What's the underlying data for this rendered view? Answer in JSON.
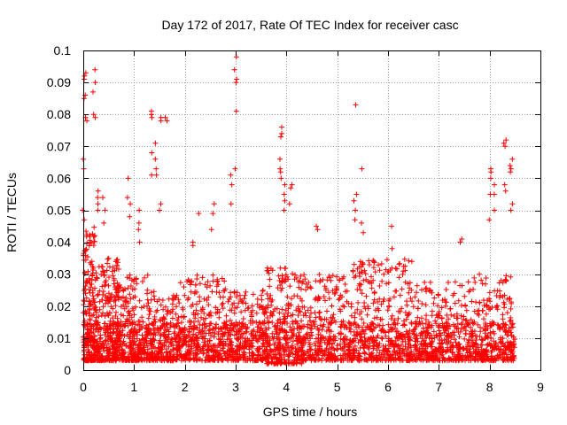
{
  "chart_data": {
    "type": "scatter",
    "title": "Day 172 of 2017, Rate Of TEC Index for receiver casc",
    "xlabel": "GPS time / hours",
    "ylabel": "ROTI / TECUs",
    "xlim": [
      0,
      9
    ],
    "ylim": [
      0,
      0.1
    ],
    "xticks": [
      0,
      1,
      2,
      3,
      4,
      5,
      6,
      7,
      8,
      9
    ],
    "xtick_labels": [
      "0",
      "1",
      "2",
      "3",
      "4",
      "5",
      "6",
      "7",
      "8",
      "9"
    ],
    "yticks": [
      0,
      0.01,
      0.02,
      0.03,
      0.04,
      0.05,
      0.06,
      0.07,
      0.08,
      0.09,
      0.1
    ],
    "ytick_labels": [
      "0",
      "0.01",
      "0.02",
      "0.03",
      "0.04",
      "0.05",
      "0.06",
      "0.07",
      "0.08",
      "0.09",
      "0.1"
    ],
    "grid": true,
    "marker": "+",
    "marker_color": "#ff0000",
    "density_bands": [
      {
        "x": [
          0.0,
          0.25
        ],
        "ymin": 0.003,
        "ymax": 0.045,
        "n": 220
      },
      {
        "x": [
          0.25,
          0.7
        ],
        "ymin": 0.003,
        "ymax": 0.035,
        "n": 260
      },
      {
        "x": [
          0.7,
          1.3
        ],
        "ymin": 0.003,
        "ymax": 0.03,
        "n": 230
      },
      {
        "x": [
          1.3,
          1.9
        ],
        "ymin": 0.003,
        "ymax": 0.025,
        "n": 200
      },
      {
        "x": [
          1.9,
          2.8
        ],
        "ymin": 0.003,
        "ymax": 0.03,
        "n": 280
      },
      {
        "x": [
          2.8,
          3.6
        ],
        "ymin": 0.003,
        "ymax": 0.025,
        "n": 230
      },
      {
        "x": [
          3.6,
          4.3
        ],
        "ymin": 0.002,
        "ymax": 0.032,
        "n": 250
      },
      {
        "x": [
          4.3,
          5.3
        ],
        "ymin": 0.003,
        "ymax": 0.03,
        "n": 260
      },
      {
        "x": [
          5.3,
          6.5
        ],
        "ymin": 0.003,
        "ymax": 0.035,
        "n": 330
      },
      {
        "x": [
          6.5,
          7.5
        ],
        "ymin": 0.003,
        "ymax": 0.028,
        "n": 260
      },
      {
        "x": [
          7.5,
          8.5
        ],
        "ymin": 0.003,
        "ymax": 0.03,
        "n": 300
      }
    ],
    "base_band": {
      "x": [
        0.0,
        8.5
      ],
      "ymin": 0.003,
      "ymax": 0.015,
      "n": 900
    },
    "spikes": [
      {
        "x": 0.0,
        "values": [
          0.063,
          0.066,
          0.05,
          0.047
        ]
      },
      {
        "x": 0.02,
        "values": [
          0.085,
          0.091,
          0.092
        ]
      },
      {
        "x": 0.05,
        "values": [
          0.086,
          0.093,
          0.079,
          0.078
        ]
      },
      {
        "x": 0.22,
        "values": [
          0.094,
          0.09,
          0.087,
          0.08,
          0.079
        ]
      },
      {
        "x": 0.28,
        "values": [
          0.056,
          0.052,
          0.054,
          0.05
        ]
      },
      {
        "x": 0.4,
        "values": [
          0.054,
          0.05,
          0.046
        ]
      },
      {
        "x": 0.9,
        "values": [
          0.06,
          0.054,
          0.052,
          0.048
        ]
      },
      {
        "x": 1.1,
        "values": [
          0.05,
          0.046,
          0.044,
          0.04
        ]
      },
      {
        "x": 1.35,
        "values": [
          0.081,
          0.08,
          0.079,
          0.068,
          0.061
        ]
      },
      {
        "x": 1.42,
        "values": [
          0.071,
          0.066,
          0.063,
          0.061
        ]
      },
      {
        "x": 1.5,
        "values": [
          0.079,
          0.078,
          0.052,
          0.05
        ]
      },
      {
        "x": 1.62,
        "values": [
          0.079,
          0.078
        ]
      },
      {
        "x": 2.15,
        "values": [
          0.04,
          0.039
        ]
      },
      {
        "x": 2.3,
        "values": [
          0.049
        ]
      },
      {
        "x": 2.55,
        "values": [
          0.052,
          0.049,
          0.044
        ]
      },
      {
        "x": 2.92,
        "values": [
          0.052,
          0.058,
          0.061
        ]
      },
      {
        "x": 3.0,
        "values": [
          0.098,
          0.094,
          0.091,
          0.09,
          0.081,
          0.063
        ]
      },
      {
        "x": 3.88,
        "values": [
          0.076,
          0.074,
          0.073,
          0.066,
          0.063,
          0.062,
          0.06
        ]
      },
      {
        "x": 3.95,
        "values": [
          0.058,
          0.055,
          0.053,
          0.05
        ]
      },
      {
        "x": 4.08,
        "values": [
          0.058,
          0.057,
          0.052
        ]
      },
      {
        "x": 4.6,
        "values": [
          0.045,
          0.044
        ]
      },
      {
        "x": 5.35,
        "values": [
          0.083,
          0.055,
          0.053,
          0.05,
          0.047
        ]
      },
      {
        "x": 5.5,
        "values": [
          0.063,
          0.046,
          0.043
        ]
      },
      {
        "x": 6.05,
        "values": [
          0.045,
          0.038
        ]
      },
      {
        "x": 7.45,
        "values": [
          0.041,
          0.04
        ]
      },
      {
        "x": 8.0,
        "values": [
          0.063,
          0.062,
          0.06,
          0.055,
          0.047
        ]
      },
      {
        "x": 8.12,
        "values": [
          0.058,
          0.055,
          0.05
        ]
      },
      {
        "x": 8.3,
        "values": [
          0.072,
          0.071,
          0.07,
          0.058,
          0.056
        ]
      },
      {
        "x": 8.42,
        "values": [
          0.066,
          0.064,
          0.063,
          0.062,
          0.052,
          0.05
        ]
      }
    ]
  }
}
